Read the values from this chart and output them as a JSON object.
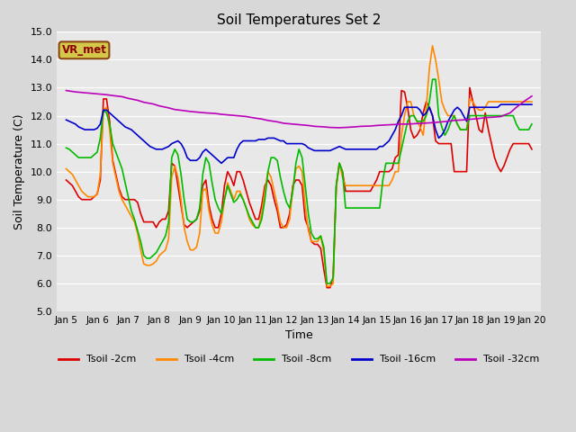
{
  "title": "Soil Temperatures Set 2",
  "xlabel": "Time",
  "ylabel": "Soil Temperature (C)",
  "ylim": [
    5.0,
    15.0
  ],
  "yticks": [
    5.0,
    6.0,
    7.0,
    8.0,
    9.0,
    10.0,
    11.0,
    12.0,
    13.0,
    14.0,
    15.0
  ],
  "xtick_labels": [
    "Jan 5",
    "Jan 6",
    "Jan 7",
    "Jan 8",
    "Jan 9",
    "Jan 10",
    "Jan 11",
    "Jan 12",
    "Jan 13",
    "Jan 14",
    "Jan 15",
    "Jan 16",
    "Jan 17",
    "Jan 18",
    "Jan 19",
    "Jan 20"
  ],
  "fig_bg": "#d8d8d8",
  "plot_bg": "#e8e8e8",
  "grid_color": "#ffffff",
  "annotation_text": "VR_met",
  "annotation_bg": "#d4c84a",
  "annotation_edge": "#8b4513",
  "annotation_color": "#8b0000",
  "series_order": [
    "Tsoil -2cm",
    "Tsoil -4cm",
    "Tsoil -8cm",
    "Tsoil -16cm",
    "Tsoil -32cm"
  ],
  "series": {
    "Tsoil -2cm": {
      "color": "#dd0000",
      "x": [
        0,
        0.1,
        0.2,
        0.3,
        0.4,
        0.5,
        0.6,
        0.7,
        0.8,
        0.9,
        1.0,
        1.1,
        1.2,
        1.3,
        1.4,
        1.5,
        1.6,
        1.7,
        1.8,
        1.9,
        2.0,
        2.1,
        2.2,
        2.3,
        2.4,
        2.5,
        2.6,
        2.7,
        2.8,
        2.9,
        3.0,
        3.1,
        3.2,
        3.3,
        3.4,
        3.5,
        3.6,
        3.7,
        3.8,
        3.9,
        4.0,
        4.1,
        4.2,
        4.3,
        4.4,
        4.5,
        4.6,
        4.7,
        4.8,
        4.9,
        5.0,
        5.1,
        5.2,
        5.3,
        5.4,
        5.5,
        5.6,
        5.7,
        5.8,
        5.9,
        6.0,
        6.1,
        6.2,
        6.3,
        6.4,
        6.5,
        6.6,
        6.7,
        6.8,
        6.9,
        7.0,
        7.1,
        7.2,
        7.3,
        7.4,
        7.5,
        7.6,
        7.7,
        7.8,
        7.9,
        8.0,
        8.1,
        8.2,
        8.3,
        8.4,
        8.5,
        8.6,
        8.7,
        8.8,
        8.9,
        9.0,
        9.1,
        9.2,
        9.3,
        9.4,
        9.5,
        9.6,
        9.7,
        9.8,
        9.9,
        10.0,
        10.1,
        10.2,
        10.3,
        10.4,
        10.5,
        10.6,
        10.7,
        10.8,
        10.9,
        11.0,
        11.1,
        11.2,
        11.3,
        11.4,
        11.5,
        11.6,
        11.7,
        11.8,
        11.9,
        12.0,
        12.1,
        12.2,
        12.3,
        12.4,
        12.5,
        12.6,
        12.7,
        12.8,
        12.9,
        13.0,
        13.1,
        13.2,
        13.3,
        13.4,
        13.5,
        13.6,
        13.7,
        13.8,
        13.9,
        14.0,
        14.1,
        14.2,
        14.3,
        14.4,
        14.5,
        14.6,
        14.7,
        14.8,
        14.9,
        15.0
      ],
      "y": [
        9.7,
        9.6,
        9.5,
        9.3,
        9.1,
        9.0,
        9.0,
        9.0,
        9.0,
        9.1,
        9.2,
        9.7,
        12.6,
        12.6,
        11.8,
        10.4,
        9.9,
        9.4,
        9.1,
        9.0,
        9.0,
        9.0,
        9.0,
        8.9,
        8.5,
        8.2,
        8.2,
        8.2,
        8.2,
        8.0,
        8.2,
        8.3,
        8.3,
        8.6,
        10.3,
        10.2,
        9.5,
        8.8,
        8.1,
        8.0,
        8.1,
        8.2,
        8.3,
        8.6,
        9.5,
        9.7,
        8.8,
        8.3,
        8.0,
        8.0,
        8.5,
        9.5,
        10.0,
        9.8,
        9.5,
        10.0,
        10.0,
        9.7,
        9.3,
        8.9,
        8.6,
        8.3,
        8.3,
        8.8,
        9.5,
        9.7,
        9.5,
        9.0,
        8.6,
        8.0,
        8.0,
        8.1,
        8.5,
        9.5,
        9.7,
        9.7,
        9.5,
        8.3,
        8.0,
        7.5,
        7.4,
        7.4,
        7.25,
        6.5,
        5.85,
        5.85,
        6.2,
        9.5,
        10.3,
        10.0,
        9.3,
        9.3,
        9.3,
        9.3,
        9.3,
        9.3,
        9.3,
        9.3,
        9.3,
        9.5,
        9.7,
        10.0,
        10.0,
        10.0,
        10.0,
        10.1,
        10.5,
        10.6,
        12.9,
        12.85,
        12.3,
        11.5,
        11.2,
        11.3,
        11.5,
        12.1,
        12.5,
        12.3,
        12.0,
        11.1,
        11.0,
        11.0,
        11.0,
        11.0,
        11.0,
        10.0,
        10.0,
        10.0,
        10.0,
        10.0,
        13.0,
        12.5,
        12.0,
        11.5,
        11.4,
        12.1,
        11.5,
        11.0,
        10.5,
        10.2,
        10.0,
        10.2,
        10.5,
        10.8,
        11.0,
        11.0,
        11.0,
        11.0,
        11.0,
        11.0,
        10.8
      ]
    },
    "Tsoil -4cm": {
      "color": "#ff8800",
      "x": [
        0,
        0.1,
        0.2,
        0.3,
        0.4,
        0.5,
        0.6,
        0.7,
        0.8,
        0.9,
        1.0,
        1.1,
        1.2,
        1.3,
        1.4,
        1.5,
        1.6,
        1.7,
        1.8,
        1.9,
        2.0,
        2.1,
        2.2,
        2.3,
        2.4,
        2.5,
        2.6,
        2.7,
        2.8,
        2.9,
        3.0,
        3.1,
        3.2,
        3.3,
        3.4,
        3.5,
        3.6,
        3.7,
        3.8,
        3.9,
        4.0,
        4.1,
        4.2,
        4.3,
        4.4,
        4.5,
        4.6,
        4.7,
        4.8,
        4.9,
        5.0,
        5.1,
        5.2,
        5.3,
        5.4,
        5.5,
        5.6,
        5.7,
        5.8,
        5.9,
        6.0,
        6.1,
        6.2,
        6.3,
        6.4,
        6.5,
        6.6,
        6.7,
        6.8,
        6.9,
        7.0,
        7.1,
        7.2,
        7.3,
        7.4,
        7.5,
        7.6,
        7.7,
        7.8,
        7.9,
        8.0,
        8.1,
        8.2,
        8.3,
        8.4,
        8.5,
        8.6,
        8.7,
        8.8,
        8.9,
        9.0,
        9.1,
        9.2,
        9.3,
        9.4,
        9.5,
        9.6,
        9.7,
        9.8,
        9.9,
        10.0,
        10.1,
        10.2,
        10.3,
        10.4,
        10.5,
        10.6,
        10.7,
        10.8,
        10.9,
        11.0,
        11.1,
        11.2,
        11.3,
        11.4,
        11.5,
        11.6,
        11.7,
        11.8,
        11.9,
        12.0,
        12.1,
        12.2,
        12.3,
        12.4,
        12.5,
        12.6,
        12.7,
        12.8,
        12.9,
        13.0,
        13.1,
        13.2,
        13.3,
        13.4,
        13.5,
        13.6,
        13.7,
        13.8,
        13.9,
        14.0,
        14.1,
        14.2,
        14.3,
        14.4,
        14.5,
        14.6,
        14.7,
        14.8,
        14.9,
        15.0
      ],
      "y": [
        10.1,
        10.0,
        9.9,
        9.7,
        9.5,
        9.3,
        9.2,
        9.1,
        9.1,
        9.1,
        9.2,
        9.9,
        12.2,
        12.3,
        11.5,
        10.3,
        9.8,
        9.3,
        9.0,
        8.8,
        8.6,
        8.4,
        8.2,
        7.8,
        7.2,
        6.7,
        6.65,
        6.65,
        6.7,
        6.8,
        7.0,
        7.1,
        7.2,
        7.6,
        9.8,
        10.2,
        9.8,
        9.0,
        8.0,
        7.5,
        7.2,
        7.2,
        7.3,
        7.8,
        9.3,
        9.4,
        8.6,
        8.1,
        7.8,
        7.8,
        8.2,
        9.0,
        9.6,
        9.3,
        9.0,
        9.3,
        9.3,
        9.0,
        8.7,
        8.3,
        8.1,
        8.0,
        8.0,
        8.5,
        9.3,
        10.0,
        9.8,
        9.3,
        8.8,
        8.2,
        8.0,
        8.0,
        8.3,
        9.4,
        10.1,
        10.2,
        10.0,
        8.8,
        7.9,
        7.5,
        7.5,
        7.5,
        7.7,
        7.1,
        5.9,
        5.9,
        6.0,
        9.4,
        10.3,
        9.8,
        9.5,
        9.5,
        9.5,
        9.5,
        9.5,
        9.5,
        9.5,
        9.5,
        9.5,
        9.5,
        9.5,
        9.5,
        9.5,
        9.5,
        9.5,
        9.7,
        10.0,
        10.0,
        11.3,
        12.0,
        12.5,
        12.5,
        12.0,
        11.8,
        11.6,
        11.3,
        12.3,
        13.7,
        14.5,
        14.0,
        13.3,
        12.5,
        12.2,
        12.0,
        12.0,
        12.0,
        11.7,
        11.5,
        11.5,
        11.5,
        12.6,
        12.5,
        12.3,
        12.2,
        12.2,
        12.3,
        12.5,
        12.5,
        12.5,
        12.5,
        12.5,
        12.5,
        12.5,
        12.5,
        12.5,
        12.5,
        12.5,
        12.5,
        12.5,
        12.5,
        12.5
      ]
    },
    "Tsoil -8cm": {
      "color": "#00bb00",
      "x": [
        0,
        0.1,
        0.2,
        0.3,
        0.4,
        0.5,
        0.6,
        0.7,
        0.8,
        0.9,
        1.0,
        1.1,
        1.2,
        1.3,
        1.4,
        1.5,
        1.6,
        1.7,
        1.8,
        1.9,
        2.0,
        2.1,
        2.2,
        2.3,
        2.4,
        2.5,
        2.6,
        2.7,
        2.8,
        2.9,
        3.0,
        3.1,
        3.2,
        3.3,
        3.4,
        3.5,
        3.6,
        3.7,
        3.8,
        3.9,
        4.0,
        4.1,
        4.2,
        4.3,
        4.4,
        4.5,
        4.6,
        4.7,
        4.8,
        4.9,
        5.0,
        5.1,
        5.2,
        5.3,
        5.4,
        5.5,
        5.6,
        5.7,
        5.8,
        5.9,
        6.0,
        6.1,
        6.2,
        6.3,
        6.4,
        6.5,
        6.6,
        6.7,
        6.8,
        6.9,
        7.0,
        7.1,
        7.2,
        7.3,
        7.4,
        7.5,
        7.6,
        7.7,
        7.8,
        7.9,
        8.0,
        8.1,
        8.2,
        8.3,
        8.4,
        8.5,
        8.6,
        8.7,
        8.8,
        8.9,
        9.0,
        9.1,
        9.2,
        9.3,
        9.4,
        9.5,
        9.6,
        9.7,
        9.8,
        9.9,
        10.0,
        10.1,
        10.2,
        10.3,
        10.4,
        10.5,
        10.6,
        10.7,
        10.8,
        10.9,
        11.0,
        11.1,
        11.2,
        11.3,
        11.4,
        11.5,
        11.6,
        11.7,
        11.8,
        11.9,
        12.0,
        12.1,
        12.2,
        12.3,
        12.4,
        12.5,
        12.6,
        12.7,
        12.8,
        12.9,
        13.0,
        13.1,
        13.2,
        13.3,
        13.4,
        13.5,
        13.6,
        13.7,
        13.8,
        13.9,
        14.0,
        14.1,
        14.2,
        14.3,
        14.4,
        14.5,
        14.6,
        14.7,
        14.8,
        14.9,
        15.0
      ],
      "y": [
        10.85,
        10.8,
        10.7,
        10.6,
        10.5,
        10.5,
        10.5,
        10.5,
        10.5,
        10.6,
        10.7,
        11.2,
        12.2,
        12.1,
        11.7,
        11.0,
        10.7,
        10.4,
        10.1,
        9.6,
        9.1,
        8.6,
        8.3,
        7.9,
        7.5,
        7.0,
        6.9,
        6.9,
        7.0,
        7.1,
        7.3,
        7.5,
        7.7,
        8.2,
        10.5,
        10.8,
        10.6,
        9.9,
        9.0,
        8.3,
        8.2,
        8.2,
        8.3,
        8.7,
        9.9,
        10.5,
        10.3,
        9.6,
        9.0,
        8.7,
        8.5,
        9.0,
        9.5,
        9.2,
        8.9,
        9.0,
        9.2,
        9.0,
        8.7,
        8.4,
        8.2,
        8.0,
        8.0,
        8.3,
        9.0,
        10.0,
        10.5,
        10.5,
        10.4,
        9.8,
        9.3,
        8.9,
        8.7,
        9.3,
        10.3,
        10.8,
        10.5,
        9.5,
        8.5,
        7.8,
        7.6,
        7.6,
        7.7,
        7.3,
        6.0,
        6.0,
        6.2,
        9.5,
        10.3,
        10.0,
        8.7,
        8.7,
        8.7,
        8.7,
        8.7,
        8.7,
        8.7,
        8.7,
        8.7,
        8.7,
        8.7,
        8.7,
        9.7,
        10.3,
        10.3,
        10.3,
        10.3,
        10.3,
        10.8,
        11.3,
        11.8,
        12.0,
        12.0,
        11.8,
        11.8,
        11.8,
        12.0,
        12.5,
        13.3,
        13.3,
        12.0,
        11.6,
        11.3,
        11.5,
        11.8,
        12.0,
        11.7,
        11.5,
        11.5,
        11.5,
        12.0,
        12.0,
        12.0,
        12.0,
        12.0,
        12.0,
        12.0,
        12.0,
        12.0,
        12.0,
        12.0,
        12.0,
        12.0,
        12.0,
        12.0,
        11.7,
        11.5,
        11.5,
        11.5,
        11.5,
        11.7
      ]
    },
    "Tsoil -16cm": {
      "color": "#0000cc",
      "x": [
        0,
        0.1,
        0.2,
        0.3,
        0.4,
        0.5,
        0.6,
        0.7,
        0.8,
        0.9,
        1.0,
        1.1,
        1.2,
        1.3,
        1.4,
        1.5,
        1.6,
        1.7,
        1.8,
        1.9,
        2.0,
        2.1,
        2.2,
        2.3,
        2.4,
        2.5,
        2.6,
        2.7,
        2.8,
        2.9,
        3.0,
        3.1,
        3.2,
        3.3,
        3.4,
        3.5,
        3.6,
        3.7,
        3.8,
        3.9,
        4.0,
        4.1,
        4.2,
        4.3,
        4.4,
        4.5,
        4.6,
        4.7,
        4.8,
        4.9,
        5.0,
        5.1,
        5.2,
        5.3,
        5.4,
        5.5,
        5.6,
        5.7,
        5.8,
        5.9,
        6.0,
        6.1,
        6.2,
        6.3,
        6.4,
        6.5,
        6.6,
        6.7,
        6.8,
        6.9,
        7.0,
        7.1,
        7.2,
        7.3,
        7.4,
        7.5,
        7.6,
        7.7,
        7.8,
        7.9,
        8.0,
        8.1,
        8.2,
        8.3,
        8.4,
        8.5,
        8.6,
        8.7,
        8.8,
        8.9,
        9.0,
        9.1,
        9.2,
        9.3,
        9.4,
        9.5,
        9.6,
        9.7,
        9.8,
        9.9,
        10.0,
        10.1,
        10.2,
        10.3,
        10.4,
        10.5,
        10.6,
        10.7,
        10.8,
        10.9,
        11.0,
        11.1,
        11.2,
        11.3,
        11.4,
        11.5,
        11.6,
        11.7,
        11.8,
        11.9,
        12.0,
        12.1,
        12.2,
        12.3,
        12.4,
        12.5,
        12.6,
        12.7,
        12.8,
        12.9,
        13.0,
        13.1,
        13.2,
        13.3,
        13.4,
        13.5,
        13.6,
        13.7,
        13.8,
        13.9,
        14.0,
        14.1,
        14.2,
        14.3,
        14.4,
        14.5,
        14.6,
        14.7,
        14.8,
        14.9,
        15.0
      ],
      "y": [
        11.85,
        11.8,
        11.75,
        11.7,
        11.6,
        11.55,
        11.5,
        11.5,
        11.5,
        11.5,
        11.55,
        11.7,
        12.2,
        12.2,
        12.1,
        12.0,
        11.9,
        11.8,
        11.7,
        11.6,
        11.55,
        11.5,
        11.4,
        11.3,
        11.2,
        11.1,
        11.0,
        10.9,
        10.85,
        10.8,
        10.8,
        10.8,
        10.85,
        10.9,
        11.0,
        11.05,
        11.1,
        11.0,
        10.8,
        10.5,
        10.4,
        10.4,
        10.4,
        10.5,
        10.7,
        10.8,
        10.7,
        10.6,
        10.5,
        10.4,
        10.3,
        10.4,
        10.5,
        10.5,
        10.5,
        10.8,
        11.0,
        11.1,
        11.1,
        11.1,
        11.1,
        11.1,
        11.15,
        11.15,
        11.15,
        11.2,
        11.2,
        11.2,
        11.15,
        11.1,
        11.1,
        11.0,
        11.0,
        11.0,
        11.0,
        11.0,
        11.0,
        10.95,
        10.85,
        10.8,
        10.75,
        10.75,
        10.75,
        10.75,
        10.75,
        10.75,
        10.8,
        10.85,
        10.9,
        10.85,
        10.8,
        10.8,
        10.8,
        10.8,
        10.8,
        10.8,
        10.8,
        10.8,
        10.8,
        10.8,
        10.8,
        10.9,
        10.9,
        11.0,
        11.1,
        11.3,
        11.5,
        11.8,
        12.0,
        12.3,
        12.3,
        12.3,
        12.3,
        12.3,
        12.2,
        12.0,
        12.1,
        12.3,
        12.0,
        11.5,
        11.2,
        11.3,
        11.5,
        11.8,
        12.0,
        12.2,
        12.3,
        12.2,
        12.0,
        11.8,
        12.3,
        12.3,
        12.3,
        12.3,
        12.3,
        12.3,
        12.3,
        12.3,
        12.3,
        12.3,
        12.4,
        12.4,
        12.4,
        12.4,
        12.4,
        12.4,
        12.4,
        12.4,
        12.4,
        12.4,
        12.4
      ]
    },
    "Tsoil -32cm": {
      "color": "#bb00bb",
      "x": [
        0,
        0.3,
        0.5,
        0.8,
        1.0,
        1.3,
        1.5,
        1.8,
        2.0,
        2.3,
        2.5,
        2.8,
        3.0,
        3.3,
        3.5,
        3.8,
        4.0,
        4.3,
        4.5,
        4.8,
        5.0,
        5.3,
        5.5,
        5.8,
        6.0,
        6.3,
        6.5,
        6.8,
        7.0,
        7.3,
        7.5,
        7.8,
        8.0,
        8.3,
        8.5,
        8.8,
        9.0,
        9.3,
        9.5,
        9.8,
        10.0,
        10.3,
        10.5,
        10.8,
        11.0,
        11.3,
        11.5,
        11.8,
        12.0,
        12.3,
        12.5,
        12.8,
        13.0,
        13.3,
        13.5,
        13.8,
        14.0,
        14.3,
        14.5,
        14.8,
        15.0
      ],
      "y": [
        12.9,
        12.85,
        12.83,
        12.8,
        12.78,
        12.75,
        12.72,
        12.68,
        12.62,
        12.55,
        12.48,
        12.42,
        12.35,
        12.28,
        12.22,
        12.18,
        12.15,
        12.12,
        12.1,
        12.08,
        12.05,
        12.02,
        12.0,
        11.97,
        11.93,
        11.88,
        11.83,
        11.78,
        11.73,
        11.7,
        11.68,
        11.65,
        11.62,
        11.6,
        11.58,
        11.57,
        11.58,
        11.6,
        11.62,
        11.63,
        11.65,
        11.67,
        11.68,
        11.7,
        11.7,
        11.72,
        11.73,
        11.75,
        11.77,
        11.8,
        11.83,
        11.85,
        11.87,
        11.9,
        11.93,
        11.95,
        11.97,
        12.1,
        12.3,
        12.55,
        12.7
      ]
    }
  }
}
